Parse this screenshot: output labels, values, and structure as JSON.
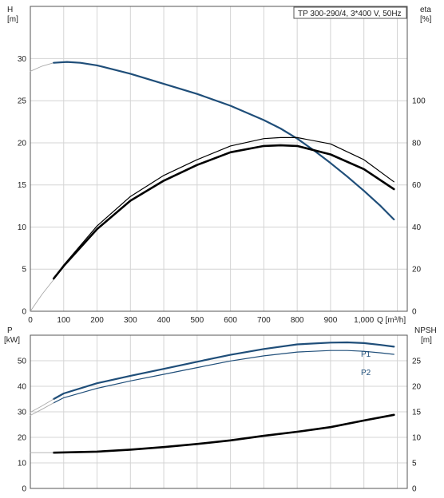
{
  "chart_data": [
    {
      "type": "line",
      "legend": "TP 300-290/4, 3*400 V, 50Hz",
      "y_left_label": "H",
      "y_left_unit": "[m]",
      "y_right_label": "eta",
      "y_right_unit": "[%]",
      "x_label": "Q [m³/h]",
      "x_tick_labels": [
        "0",
        "100",
        "200",
        "300",
        "400",
        "500",
        "600",
        "700",
        "800",
        "900",
        "1,000",
        "Q [m³/h]"
      ],
      "y_left_tick_labels": [
        "0",
        "5",
        "10",
        "15",
        "20",
        "25",
        "30"
      ],
      "y_right_tick_labels": [
        "0",
        "20",
        "40",
        "60",
        "80",
        "100"
      ],
      "xlim": [
        0,
        1130
      ],
      "y_left_lim": [
        0,
        36.2
      ],
      "y_right_lim": [
        0,
        144.8
      ],
      "grid": true,
      "series": [
        {
          "axis": "left",
          "style": "extrapolated",
          "color": "#aaaaaa",
          "x": [
            0,
            35,
            70
          ],
          "y": [
            28.5,
            29.1,
            29.5
          ]
        },
        {
          "axis": "left",
          "style": "main",
          "color": "#1f4e79",
          "x": [
            70,
            110,
            150,
            200,
            300,
            400,
            500,
            600,
            700,
            750,
            800,
            850,
            900,
            950,
            1000,
            1050,
            1090
          ],
          "y": [
            29.5,
            29.6,
            29.5,
            29.2,
            28.2,
            27.0,
            25.8,
            24.4,
            22.7,
            21.7,
            20.5,
            19.1,
            17.6,
            16.0,
            14.3,
            12.5,
            10.9
          ]
        },
        {
          "axis": "right",
          "style": "extrapolated",
          "color": "#aaaaaa",
          "x": [
            0,
            35,
            70
          ],
          "y": [
            0,
            8,
            15
          ]
        },
        {
          "axis": "right",
          "style": "thin",
          "color": "#000000",
          "x": [
            70,
            100,
            200,
            300,
            400,
            500,
            600,
            700,
            750,
            800,
            900,
            1000,
            1090
          ],
          "y": [
            15.5,
            22,
            40.5,
            54.5,
            64.5,
            72,
            78.5,
            82,
            82.5,
            82.5,
            79.5,
            72,
            61.5
          ]
        },
        {
          "axis": "right",
          "style": "bold",
          "color": "#000000",
          "x": [
            70,
            100,
            200,
            300,
            400,
            500,
            600,
            700,
            750,
            800,
            900,
            1000,
            1090
          ],
          "y": [
            15.5,
            21.5,
            39,
            52.5,
            62,
            69.5,
            75.5,
            78.5,
            78.8,
            78.5,
            74.5,
            67.5,
            58
          ]
        }
      ]
    },
    {
      "type": "line",
      "y_left_label": "P",
      "y_left_unit": "[kW]",
      "y_right_label": "NPSH",
      "y_right_unit": "[m]",
      "y_left_tick_labels": [
        "0",
        "10",
        "20",
        "30",
        "40",
        "50"
      ],
      "y_right_tick_labels": [
        "0",
        "5",
        "10",
        "15",
        "20",
        "25"
      ],
      "xlim": [
        0,
        1130
      ],
      "y_left_lim": [
        0,
        60
      ],
      "y_right_lim": [
        0,
        30
      ],
      "grid": true,
      "series": [
        {
          "name": "P1",
          "axis": "left",
          "style": "main",
          "color": "#1f4e79",
          "x": [
            70,
            100,
            200,
            300,
            400,
            500,
            600,
            700,
            800,
            900,
            950,
            1000,
            1050,
            1090
          ],
          "y": [
            35,
            37.2,
            41.2,
            44.1,
            46.8,
            49.6,
            52.3,
            54.6,
            56.4,
            57.1,
            57.2,
            56.9,
            56.2,
            55.5
          ]
        },
        {
          "axis": "left",
          "style": "extrapolated",
          "color": "#aaaaaa",
          "x": [
            0,
            35,
            70
          ],
          "y": [
            29.8,
            32.3,
            35
          ]
        },
        {
          "name": "P2",
          "axis": "left",
          "style": "thin",
          "color": "#1f4e79",
          "x": [
            70,
            100,
            200,
            300,
            400,
            500,
            600,
            700,
            800,
            900,
            950,
            1000,
            1050,
            1090
          ],
          "y": [
            33.5,
            35.5,
            39.2,
            42.1,
            44.7,
            47.3,
            49.9,
            51.9,
            53.4,
            54,
            54,
            53.7,
            53.1,
            52.5
          ]
        },
        {
          "axis": "left",
          "style": "extrapolated",
          "color": "#aaaaaa",
          "x": [
            0,
            35,
            70
          ],
          "y": [
            28.6,
            31,
            33.5
          ]
        },
        {
          "axis": "right",
          "style": "bold",
          "color": "#000000",
          "x": [
            70,
            200,
            300,
            400,
            500,
            600,
            700,
            800,
            900,
            1000,
            1090
          ],
          "y": [
            7,
            7.2,
            7.6,
            8.1,
            8.7,
            9.4,
            10.3,
            11.1,
            12,
            13.3,
            14.4
          ]
        },
        {
          "axis": "right",
          "style": "extrapolated",
          "color": "#aaaaaa",
          "x": [
            0,
            35,
            70
          ],
          "y": [
            7,
            7,
            7
          ]
        }
      ]
    }
  ]
}
